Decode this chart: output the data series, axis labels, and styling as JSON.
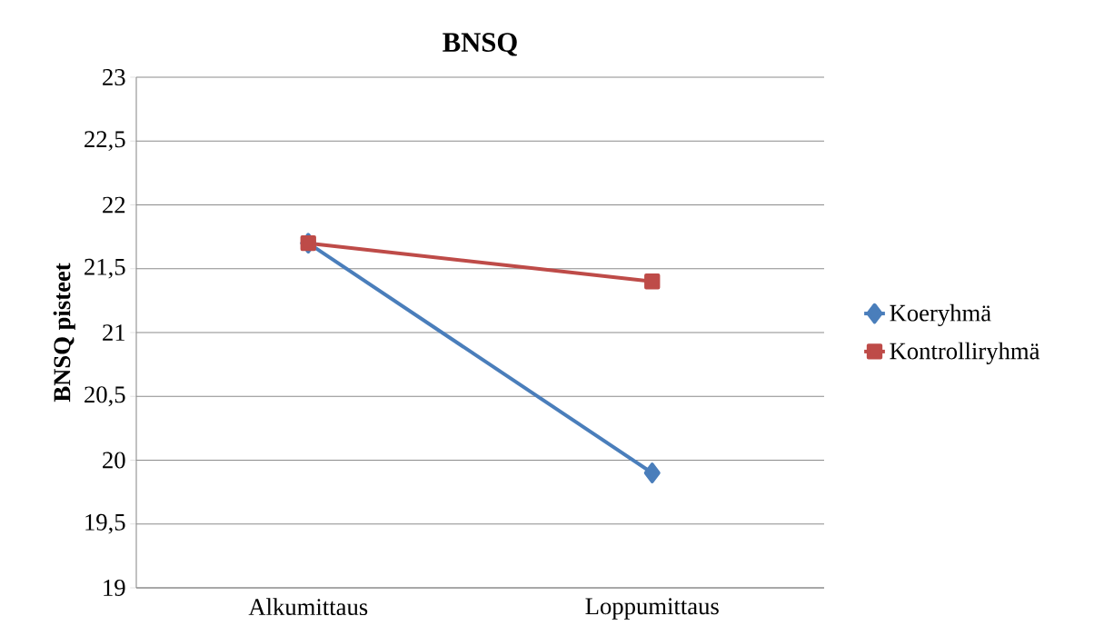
{
  "chart_data": {
    "type": "line",
    "title": "BNSQ",
    "ylabel": "BNSQ pisteet",
    "categories": [
      "Alkumittaus",
      "Loppumittaus"
    ],
    "series": [
      {
        "name": "Koeryhmä",
        "color": "#4a7ebb",
        "marker": "diamond",
        "values": [
          21.7,
          19.9
        ]
      },
      {
        "name": "Kontrolliryhmä",
        "color": "#be4b48",
        "marker": "square",
        "values": [
          21.7,
          21.4
        ]
      }
    ],
    "ylim": [
      19,
      23
    ],
    "yticks": [
      19,
      {
        "value": 19.5,
        "label": "19,5"
      },
      20,
      {
        "value": 20.5,
        "label": "20,5"
      },
      21,
      {
        "value": 21.5,
        "label": "21,5"
      },
      22,
      {
        "value": 22.5,
        "label": "22,5"
      },
      23
    ],
    "grid": "y",
    "legend": "right",
    "line_style": "solid"
  }
}
